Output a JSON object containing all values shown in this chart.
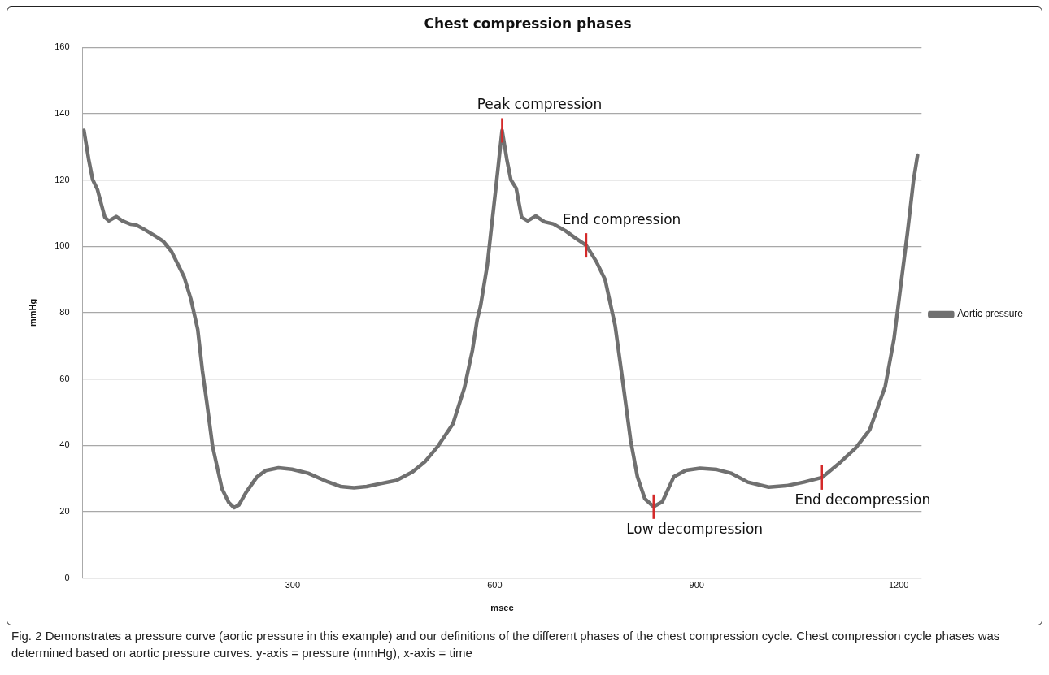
{
  "chart_data": {
    "type": "line",
    "title": "Chest compression phases",
    "xlabel": "msec",
    "ylabel": "mmHg",
    "xlim": [
      -12,
      1234
    ],
    "xticks": [
      300,
      600,
      900,
      1200
    ],
    "ylim": [
      0,
      160
    ],
    "yticks": [
      0,
      20,
      40,
      60,
      80,
      100,
      120,
      140,
      160
    ],
    "grid": "y",
    "legend": "right",
    "marker": "none",
    "line_style": "solid",
    "series": [
      {
        "name": "Aortic pressure",
        "color": "#707070",
        "x": [
          -10,
          -3,
          3,
          10,
          21,
          27,
          38,
          47,
          59,
          67,
          79,
          96,
          108,
          120,
          139,
          149,
          159,
          166,
          173,
          181,
          195,
          205,
          213,
          220,
          231,
          247,
          260,
          279,
          299,
          323,
          352,
          371,
          391,
          410,
          429,
          454,
          478,
          497,
          516,
          538,
          555,
          567,
          574,
          579,
          589,
          594,
          602,
          611,
          618,
          624,
          632,
          640,
          649,
          661,
          674,
          687,
          705,
          720,
          736,
          751,
          764,
          779,
          789,
          802,
          812,
          823,
          836,
          849,
          866,
          884,
          905,
          930,
          951,
          976,
          1007,
          1033,
          1059,
          1086,
          1110,
          1136,
          1157,
          1180,
          1193,
          1213,
          1222,
          1228
        ],
        "values": [
          135,
          126.3,
          120.1,
          117.2,
          108.8,
          107.7,
          109,
          107.7,
          106.7,
          106.5,
          105.2,
          103.1,
          101.5,
          98.5,
          90.7,
          84,
          75,
          62.5,
          52.2,
          39.8,
          26.9,
          22.8,
          21.2,
          22,
          25.9,
          30.5,
          32.4,
          33.2,
          32.8,
          31.6,
          29,
          27.6,
          27.2,
          27.6,
          28.4,
          29.4,
          32,
          35.2,
          39.8,
          46.5,
          57.3,
          68.7,
          77.9,
          82,
          94.3,
          103.6,
          118,
          135,
          126.3,
          120.1,
          117.5,
          108.8,
          107.7,
          109.2,
          107.4,
          106.8,
          104.7,
          102.5,
          100.3,
          95.4,
          90,
          76,
          61.1,
          41.4,
          30.5,
          23.9,
          21.5,
          23,
          30.5,
          32.5,
          33.1,
          32.7,
          31.6,
          28.9,
          27.4,
          27.8,
          28.9,
          30.3,
          34.3,
          39.2,
          44.7,
          57.8,
          72,
          104.1,
          119.9,
          127.5
        ]
      }
    ],
    "annotations": [
      {
        "text": "Peak compression",
        "x": 611,
        "y": 135
      },
      {
        "text": "End compression",
        "x": 736,
        "y": 100.3
      },
      {
        "text": "Low decompression",
        "x": 836,
        "y": 21.5
      },
      {
        "text": "End decompression",
        "x": 1086,
        "y": 30.3
      },
      "Fig. 2 Demonstrates a pressure curve (aortic pressure in this example) and our definitions of the different phases of the chest compression cycle. Chest compression cycle phases was determined based on aortic pressure curves. y-axis = pressure (mmHg), x-axis = time"
    ]
  }
}
